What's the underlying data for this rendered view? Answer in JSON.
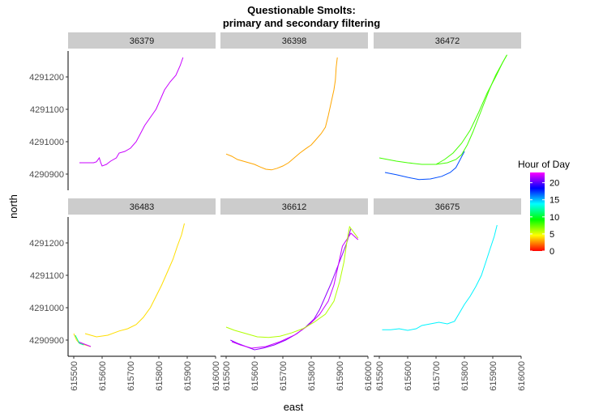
{
  "title_line1": "Questionable Smolts:",
  "title_line2": "primary and secondary filtering",
  "chart_data": {
    "type": "line",
    "xlabel": "east",
    "ylabel": "north",
    "xlim": [
      615480,
      616000
    ],
    "ylim": [
      4290850,
      4291280
    ],
    "x_ticks": [
      615500,
      615600,
      615700,
      615800,
      615900,
      616000
    ],
    "x_tick_labels": [
      "615500",
      "615600",
      "615700",
      "615800",
      "615900",
      "616000"
    ],
    "y_ticks": [
      4290900,
      4291000,
      4291100,
      4291200
    ],
    "y_tick_labels": [
      "4290900",
      "4291000",
      "4291100",
      "4291200"
    ],
    "grid": false,
    "color_scale": {
      "title": "Hour of Day",
      "range": [
        0,
        23
      ],
      "ticks": [
        0,
        5,
        10,
        15,
        20
      ],
      "tick_labels": [
        "0",
        "5",
        "10",
        "15",
        "20"
      ],
      "legend_placement": "right",
      "colors": [
        "#ff0000",
        "#ffff00",
        "#00ff00",
        "#00ffff",
        "#0000ff",
        "#ff00ff"
      ]
    },
    "panels": [
      {
        "label": "36379",
        "tracks": [
          {
            "hour": 22,
            "points": [
              [
                615520,
                4290935
              ],
              [
                615550,
                4290935
              ],
              [
                615570,
                4290935
              ],
              [
                615580,
                4290938
              ],
              [
                615590,
                4290950
              ],
              [
                615595,
                4290935
              ],
              [
                615600,
                4290925
              ],
              [
                615615,
                4290930
              ],
              [
                615630,
                4290940
              ],
              [
                615650,
                4290950
              ],
              [
                615660,
                4290965
              ],
              [
                615680,
                4290970
              ],
              [
                615700,
                4290980
              ],
              [
                615720,
                4291000
              ],
              [
                615735,
                4291025
              ],
              [
                615750,
                4291050
              ],
              [
                615770,
                4291075
              ],
              [
                615790,
                4291100
              ],
              [
                615805,
                4291130
              ],
              [
                615820,
                4291160
              ],
              [
                615840,
                4291185
              ],
              [
                615860,
                4291205
              ],
              [
                615875,
                4291235
              ],
              [
                615885,
                4291260
              ]
            ]
          }
        ]
      },
      {
        "label": "36398",
        "tracks": [
          {
            "hour": 3,
            "points": [
              [
                615500,
                4290962
              ],
              [
                615520,
                4290955
              ],
              [
                615540,
                4290945
              ],
              [
                615560,
                4290940
              ],
              [
                615580,
                4290935
              ],
              [
                615600,
                4290930
              ],
              [
                615620,
                4290922
              ],
              [
                615640,
                4290915
              ],
              [
                615660,
                4290913
              ],
              [
                615680,
                4290918
              ],
              [
                615700,
                4290925
              ],
              [
                615720,
                4290935
              ],
              [
                615740,
                4290950
              ],
              [
                615760,
                4290965
              ],
              [
                615780,
                4290978
              ],
              [
                615800,
                4290990
              ],
              [
                615815,
                4291005
              ],
              [
                615835,
                4291025
              ],
              [
                615850,
                4291045
              ],
              [
                615860,
                4291080
              ],
              [
                615870,
                4291120
              ],
              [
                615880,
                4291160
              ],
              [
                615885,
                4291190
              ],
              [
                615888,
                4291230
              ],
              [
                615892,
                4291260
              ]
            ]
          }
        ]
      },
      {
        "label": "36472",
        "tracks": [
          {
            "hour": 8,
            "points": [
              [
                615500,
                4290950
              ],
              [
                615530,
                4290945
              ],
              [
                615560,
                4290940
              ],
              [
                615600,
                4290935
              ],
              [
                615650,
                4290930
              ],
              [
                615700,
                4290930
              ],
              [
                615740,
                4290935
              ],
              [
                615770,
                4290945
              ],
              [
                615790,
                4290960
              ],
              [
                615810,
                4290990
              ],
              [
                615830,
                4291030
              ],
              [
                615850,
                4291075
              ],
              [
                615870,
                4291120
              ],
              [
                615890,
                4291165
              ],
              [
                615910,
                4291205
              ],
              [
                615935,
                4291245
              ],
              [
                615950,
                4291268
              ]
            ]
          },
          {
            "hour": 8,
            "points": [
              [
                615700,
                4290930
              ],
              [
                615730,
                4290945
              ],
              [
                615760,
                4290965
              ],
              [
                615790,
                4290995
              ],
              [
                615820,
                4291035
              ],
              [
                615850,
                4291090
              ],
              [
                615880,
                4291150
              ],
              [
                615910,
                4291200
              ],
              [
                615935,
                4291245
              ],
              [
                615950,
                4291268
              ]
            ]
          },
          {
            "hour": 17,
            "points": [
              [
                615520,
                4290905
              ],
              [
                615560,
                4290898
              ],
              [
                615600,
                4290890
              ],
              [
                615640,
                4290883
              ],
              [
                615680,
                4290885
              ],
              [
                615720,
                4290893
              ],
              [
                615750,
                4290905
              ],
              [
                615770,
                4290920
              ],
              [
                615785,
                4290945
              ],
              [
                615800,
                4290970
              ]
            ]
          }
        ]
      },
      {
        "label": "36483",
        "tracks": [
          {
            "hour": 4,
            "points": [
              [
                615540,
                4290920
              ],
              [
                615580,
                4290910
              ],
              [
                615620,
                4290915
              ],
              [
                615660,
                4290928
              ],
              [
                615690,
                4290935
              ],
              [
                615720,
                4290948
              ],
              [
                615745,
                4290970
              ],
              [
                615770,
                4291000
              ],
              [
                615790,
                4291035
              ],
              [
                615810,
                4291070
              ],
              [
                615830,
                4291110
              ],
              [
                615850,
                4291150
              ],
              [
                615865,
                4291190
              ],
              [
                615880,
                4291225
              ],
              [
                615890,
                4291260
              ]
            ]
          },
          {
            "hour": 4,
            "points": [
              [
                615500,
                4290920
              ],
              [
                615510,
                4290900
              ],
              [
                615520,
                4290890
              ],
              [
                615540,
                4290885
              ],
              [
                615560,
                4290880
              ]
            ]
          },
          {
            "hour": 22,
            "points": [
              [
                615515,
                4290895
              ],
              [
                615530,
                4290890
              ],
              [
                615545,
                4290885
              ],
              [
                615560,
                4290880
              ]
            ]
          },
          {
            "hour": 12,
            "points": [
              [
                615505,
                4290915
              ],
              [
                615520,
                4290890
              ],
              [
                615535,
                4290885
              ]
            ]
          }
        ]
      },
      {
        "label": "36612",
        "tracks": [
          {
            "hour": 21,
            "points": [
              [
                615515,
                4290900
              ],
              [
                615540,
                4290890
              ],
              [
                615570,
                4290880
              ],
              [
                615600,
                4290870
              ],
              [
                615630,
                4290875
              ],
              [
                615670,
                4290885
              ],
              [
                615710,
                4290900
              ],
              [
                615750,
                4290920
              ],
              [
                615780,
                4290940
              ],
              [
                615810,
                4290965
              ],
              [
                615830,
                4290995
              ],
              [
                615850,
                4291035
              ],
              [
                615870,
                4291075
              ],
              [
                615890,
                4291120
              ],
              [
                615910,
                4291165
              ],
              [
                615925,
                4291200
              ],
              [
                615940,
                4291245
              ]
            ]
          },
          {
            "hour": 22,
            "points": [
              [
                615520,
                4290895
              ],
              [
                615550,
                4290885
              ],
              [
                615590,
                4290875
              ],
              [
                615640,
                4290880
              ],
              [
                615690,
                4290895
              ],
              [
                615740,
                4290915
              ],
              [
                615790,
                4290945
              ],
              [
                615830,
                4290980
              ],
              [
                615860,
                4291020
              ],
              [
                615880,
                4291070
              ],
              [
                615895,
                4291130
              ],
              [
                615910,
                4291190
              ],
              [
                615940,
                4291230
              ],
              [
                615965,
                4291210
              ]
            ]
          },
          {
            "hour": 6,
            "points": [
              [
                615500,
                4290940
              ],
              [
                615530,
                4290930
              ],
              [
                615570,
                4290920
              ],
              [
                615610,
                4290910
              ],
              [
                615650,
                4290908
              ],
              [
                615690,
                4290912
              ],
              [
                615730,
                4290922
              ],
              [
                615770,
                4290935
              ],
              [
                615810,
                4290955
              ],
              [
                615850,
                4290980
              ],
              [
                615880,
                4291020
              ],
              [
                615900,
                4291080
              ],
              [
                615915,
                4291140
              ],
              [
                615925,
                4291200
              ],
              [
                615935,
                4291250
              ],
              [
                615965,
                4291215
              ]
            ]
          }
        ]
      },
      {
        "label": "36675",
        "tracks": [
          {
            "hour": 14,
            "points": [
              [
                615510,
                4290932
              ],
              [
                615540,
                4290932
              ],
              [
                615570,
                4290935
              ],
              [
                615600,
                4290930
              ],
              [
                615630,
                4290935
              ],
              [
                615650,
                4290945
              ],
              [
                615680,
                4290950
              ],
              [
                615710,
                4290955
              ],
              [
                615740,
                4290950
              ],
              [
                615765,
                4290958
              ],
              [
                615780,
                4290980
              ],
              [
                615800,
                4291010
              ],
              [
                615820,
                4291035
              ],
              [
                615840,
                4291065
              ],
              [
                615860,
                4291100
              ],
              [
                615875,
                4291140
              ],
              [
                615890,
                4291180
              ],
              [
                615905,
                4291220
              ],
              [
                615915,
                4291255
              ]
            ]
          }
        ]
      }
    ]
  }
}
